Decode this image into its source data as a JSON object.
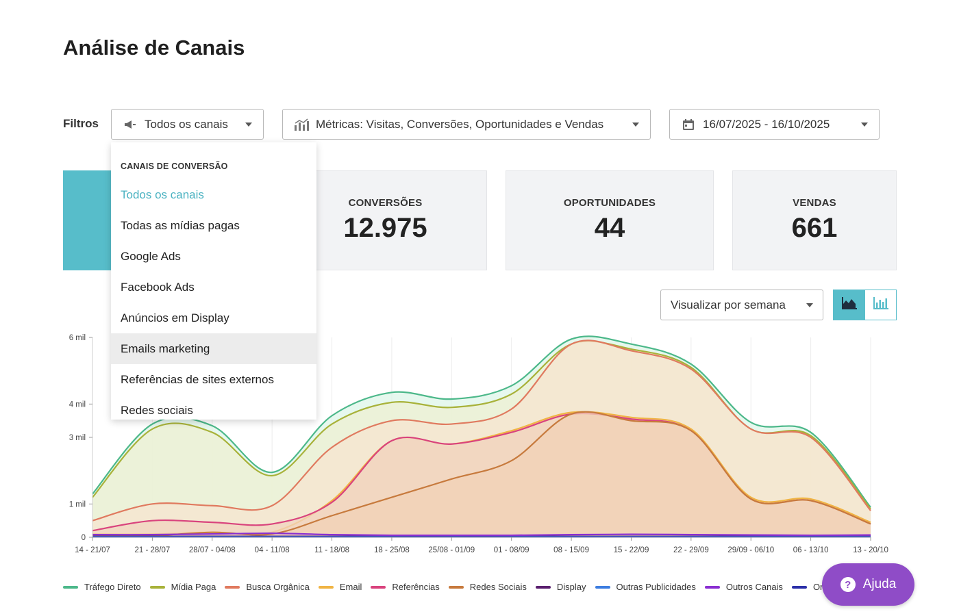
{
  "page": {
    "title": "Análise de Canais"
  },
  "filters": {
    "label": "Filtros",
    "channel": {
      "value": "Todos os canais",
      "icon": "megaphone-icon"
    },
    "metrics": {
      "value": "Métricas: Visitas, Conversões, Oportunidades e Vendas",
      "icon": "chart-icon"
    },
    "date_range": {
      "value": "16/07/2025 - 16/10/2025",
      "icon": "calendar-icon"
    }
  },
  "dropdown": {
    "header": "CANAIS DE CONVERSÃO",
    "items": [
      {
        "label": "Todos os canais",
        "state": "selected"
      },
      {
        "label": "Todas as mídias pagas",
        "state": ""
      },
      {
        "label": "Google Ads",
        "state": ""
      },
      {
        "label": "Facebook Ads",
        "state": ""
      },
      {
        "label": "Anúncios em Display",
        "state": ""
      },
      {
        "label": "Emails marketing",
        "state": "hover"
      },
      {
        "label": "Referências de sites externos",
        "state": ""
      },
      {
        "label": "Redes sociais",
        "state": ""
      }
    ]
  },
  "kpis": [
    {
      "label": "CONVERSÕES",
      "value": "12.975"
    },
    {
      "label": "OPORTUNIDADES",
      "value": "44"
    },
    {
      "label": "VENDAS",
      "value": "661"
    }
  ],
  "view": {
    "select_value": "Visualizar por semana",
    "active_mode": "area-chart-icon",
    "inactive_mode": "bar-chart-icon"
  },
  "help": {
    "label": "Ajuda"
  },
  "chart_data": {
    "type": "area",
    "stacked": true,
    "categories": [
      "14 - 21/07",
      "21 - 28/07",
      "28/07 - 04/08",
      "04 - 11/08",
      "11 - 18/08",
      "18 - 25/08",
      "25/08 - 01/09",
      "01 - 08/09",
      "08 - 15/09",
      "15 - 22/09",
      "22 - 29/09",
      "29/09 - 06/10",
      "06 - 13/10",
      "13 - 20/10"
    ],
    "y_ticks": [
      {
        "value": 0,
        "label": "0"
      },
      {
        "value": 1000,
        "label": "1 mil"
      },
      {
        "value": 3000,
        "label": "3 mil"
      },
      {
        "value": 4000,
        "label": "4 mil"
      },
      {
        "value": 6000,
        "label": "6 mil"
      }
    ],
    "ylim": [
      0,
      6000
    ],
    "grid": true,
    "legend_position": "bottom",
    "series": [
      {
        "name": "Tráfego Direto",
        "color": "#4cb88a",
        "fill": "#def5e8",
        "totals": [
          1300,
          3400,
          3350,
          1950,
          3650,
          4350,
          4150,
          4550,
          5950,
          5800,
          5200,
          3450,
          3150,
          900
        ]
      },
      {
        "name": "Mídia Paga",
        "color": "#a8b23a",
        "fill": "#eef0d2",
        "totals": [
          1200,
          3250,
          3150,
          1850,
          3400,
          4050,
          3900,
          4300,
          5800,
          5650,
          5100,
          3250,
          3050,
          850
        ]
      },
      {
        "name": "Busca Orgânica",
        "color": "#e07a5f",
        "fill": "#f7e4cf",
        "totals": [
          500,
          1000,
          950,
          950,
          2700,
          3500,
          3400,
          3850,
          5800,
          5600,
          5050,
          3250,
          3000,
          800
        ]
      },
      {
        "name": "Email",
        "color": "#f0b444",
        "fill": "#f3dcc0",
        "totals": [
          100,
          100,
          150,
          150,
          1100,
          2900,
          2800,
          3200,
          3750,
          3600,
          3250,
          1200,
          1150,
          450
        ]
      },
      {
        "name": "Referências",
        "color": "#d9437d",
        "fill": "#f1d4bf",
        "totals": [
          200,
          500,
          450,
          400,
          1050,
          2900,
          2800,
          3150,
          3700,
          3550,
          3200,
          1150,
          1100,
          400
        ]
      },
      {
        "name": "Redes Sociais",
        "color": "#c77a3d",
        "fill": "#f1d2b5",
        "totals": [
          50,
          50,
          150,
          100,
          650,
          1200,
          1750,
          2300,
          3700,
          3500,
          3200,
          1150,
          1100,
          400
        ]
      },
      {
        "name": "Display",
        "color": "#5a1f6e",
        "fill": "none",
        "totals": [
          30,
          30,
          30,
          30,
          30,
          30,
          30,
          30,
          30,
          30,
          30,
          30,
          30,
          30
        ]
      },
      {
        "name": "Outras Publicidades",
        "color": "#3d7de0",
        "fill": "none",
        "totals": [
          20,
          20,
          20,
          20,
          20,
          20,
          20,
          20,
          20,
          20,
          20,
          20,
          20,
          20
        ]
      },
      {
        "name": "Outros Canais",
        "color": "#8a2ed1",
        "fill": "none",
        "totals": [
          80,
          80,
          100,
          120,
          80,
          60,
          60,
          60,
          80,
          90,
          80,
          70,
          60,
          70
        ]
      },
      {
        "name": "Orig",
        "color": "#2b2fa8",
        "fill": "none",
        "totals": [
          10,
          10,
          10,
          10,
          10,
          10,
          10,
          10,
          10,
          10,
          10,
          10,
          10,
          10
        ]
      }
    ]
  }
}
